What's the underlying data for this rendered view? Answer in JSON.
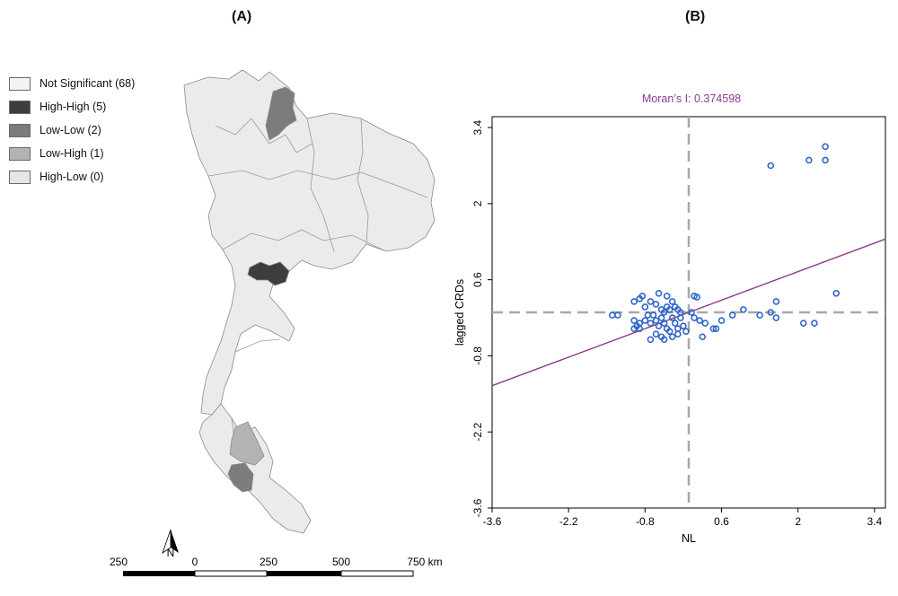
{
  "panels": {
    "a": "(A)",
    "b": "(B)"
  },
  "legend": {
    "items": [
      {
        "label": "Not Significant (68)",
        "color": "#f3f3f3"
      },
      {
        "label": "High-High (5)",
        "color": "#3d3d3d"
      },
      {
        "label": "Low-Low (2)",
        "color": "#7c7c7c"
      },
      {
        "label": "Low-High (1)",
        "color": "#b3b3b3"
      },
      {
        "label": "High-Low (0)",
        "color": "#e6e6e6"
      }
    ]
  },
  "map": {
    "north_label": "N",
    "scale": {
      "labels": [
        "250",
        "0",
        "250",
        "500",
        "750 km"
      ]
    },
    "colors": {
      "base": "#ebebeb",
      "high_high": "#3d3d3d",
      "low_low": "#7c7c7c",
      "low_high": "#b3b3b3"
    }
  },
  "chart_data": {
    "type": "scatter",
    "annotation": "Moran’s I: 0.374598",
    "xlabel": "NL",
    "ylabel": "lagged CRDs",
    "xlim": [
      -3.6,
      3.6
    ],
    "ylim": [
      -3.6,
      3.6
    ],
    "xticks": [
      "-3.6",
      "-2.2",
      "-0.8",
      "0.6",
      "2",
      "3.4"
    ],
    "xtick_values": [
      -3.6,
      -2.2,
      -0.8,
      0.6,
      2,
      3.4
    ],
    "yticks": [
      "3.4",
      "2",
      "0.6",
      "-0.8",
      "-2.2",
      "-3.6"
    ],
    "ytick_values": [
      3.4,
      2,
      0.6,
      -0.8,
      -2.2,
      -3.6
    ],
    "mean_x": 0,
    "mean_y": 0,
    "regression": {
      "slope": 0.374598,
      "intercept": 0,
      "color": "#8e3a8e"
    },
    "point_color": "#3366cc",
    "points": [
      [
        1.5,
        2.7
      ],
      [
        2.2,
        2.8
      ],
      [
        2.5,
        2.8
      ],
      [
        2.5,
        3.05
      ],
      [
        2.7,
        0.35
      ],
      [
        1.6,
        0.2
      ],
      [
        1.0,
        0.05
      ],
      [
        0.8,
        -0.05
      ],
      [
        1.3,
        -0.05
      ],
      [
        1.5,
        0.0
      ],
      [
        1.6,
        -0.1
      ],
      [
        0.6,
        -0.15
      ],
      [
        0.5,
        -0.3
      ],
      [
        0.45,
        -0.3
      ],
      [
        0.3,
        -0.2
      ],
      [
        0.2,
        -0.15
      ],
      [
        0.1,
        -0.1
      ],
      [
        2.1,
        -0.2
      ],
      [
        2.3,
        -0.2
      ],
      [
        0.25,
        -0.45
      ],
      [
        -1.3,
        -0.05
      ],
      [
        -1.4,
        -0.05
      ],
      [
        -1.0,
        -0.15
      ],
      [
        -0.9,
        -0.2
      ],
      [
        -0.9,
        -0.3
      ],
      [
        -1.0,
        -0.3
      ],
      [
        -0.8,
        -0.15
      ],
      [
        -0.7,
        -0.2
      ],
      [
        -0.6,
        -0.15
      ],
      [
        -0.55,
        -0.25
      ],
      [
        -0.5,
        -0.1
      ],
      [
        -0.45,
        -0.2
      ],
      [
        -0.4,
        -0.3
      ],
      [
        -0.35,
        -0.35
      ],
      [
        -0.3,
        -0.45
      ],
      [
        -0.25,
        -0.2
      ],
      [
        -0.2,
        -0.3
      ],
      [
        -0.15,
        -0.1
      ],
      [
        -0.1,
        -0.25
      ],
      [
        -0.05,
        -0.35
      ],
      [
        -0.8,
        0.1
      ],
      [
        -0.7,
        0.2
      ],
      [
        -0.9,
        0.25
      ],
      [
        -1.0,
        0.2
      ],
      [
        -0.85,
        0.3
      ],
      [
        -0.6,
        0.15
      ],
      [
        -0.55,
        0.35
      ],
      [
        -0.4,
        0.3
      ],
      [
        -0.35,
        0.05
      ],
      [
        -0.3,
        0.2
      ],
      [
        -0.25,
        0.1
      ],
      [
        -0.2,
        0.05
      ],
      [
        -0.15,
        0.0
      ],
      [
        0.05,
        0.0
      ],
      [
        0.1,
        0.3
      ],
      [
        0.15,
        0.28
      ],
      [
        -0.5,
        0.05
      ],
      [
        -0.65,
        -0.05
      ],
      [
        -0.75,
        -0.05
      ],
      [
        -0.6,
        -0.4
      ],
      [
        -0.5,
        -0.45
      ],
      [
        -0.45,
        -0.5
      ],
      [
        -0.7,
        -0.5
      ],
      [
        -0.95,
        -0.25
      ],
      [
        -0.3,
        -0.1
      ],
      [
        -0.4,
        0.1
      ],
      [
        -0.45,
        0.0
      ],
      [
        -0.2,
        -0.4
      ]
    ]
  }
}
